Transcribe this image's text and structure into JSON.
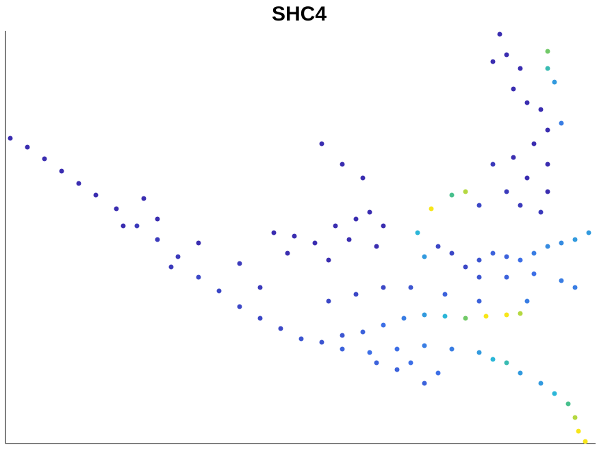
{
  "chart_data": {
    "type": "scatter",
    "title": "SHC4",
    "xlim": [
      8,
      870
    ],
    "ylim": [
      8,
      611
    ],
    "clim": [
      0,
      1
    ],
    "colormap": [
      "#3a2db0",
      "#3d6fe6",
      "#2bb6d8",
      "#4fc27a",
      "#f7e619"
    ],
    "x": [
      15,
      40,
      65,
      90,
      115,
      140,
      170,
      200,
      230,
      260,
      290,
      320,
      350,
      380,
      410,
      440,
      210,
      230,
      290,
      350,
      380,
      250,
      180,
      400,
      430,
      460,
      490,
      520,
      540,
      560,
      510,
      470,
      500,
      530,
      420,
      480,
      550,
      470,
      500,
      530,
      560,
      590,
      620,
      650,
      680,
      710,
      740,
      760,
      500,
      540,
      580,
      620,
      660,
      700,
      720,
      740,
      600,
      640,
      620,
      580,
      550,
      760,
      790,
      810,
      830,
      840,
      845,
      855,
      680,
      700,
      720,
      740,
      760,
      780,
      800,
      820,
      840,
      860,
      700,
      740,
      780,
      820,
      840,
      660,
      640,
      620,
      610,
      730,
      740,
      720,
      760,
      750,
      770,
      790,
      800,
      780,
      800,
      770,
      800,
      790,
      760,
      740,
      700,
      720,
      750,
      800,
      800,
      810,
      820,
      680,
      660,
      630,
      600,
      560,
      520,
      480,
      650,
      700,
      770
    ],
    "values": [
      454,
      441,
      424,
      406,
      388,
      371,
      351,
      326,
      306,
      281,
      251,
      231,
      208,
      191,
      176,
      161,
      366,
      336,
      301,
      271,
      236,
      266,
      326,
      316,
      311,
      301,
      326,
      336,
      346,
      326,
      306,
      446,
      416,
      396,
      286,
      276,
      296,
      156,
      166,
      171,
      181,
      191,
      196,
      194,
      191,
      194,
      196,
      198,
      146,
      141,
      146,
      151,
      146,
      141,
      131,
      126,
      126,
      111,
      96,
      116,
      126,
      111,
      96,
      81,
      66,
      46,
      26,
      11,
      266,
      276,
      286,
      281,
      276,
      286,
      296,
      301,
      306,
      316,
      251,
      251,
      256,
      246,
      236,
      286,
      296,
      281,
      316,
      606,
      576,
      566,
      556,
      526,
      506,
      496,
      466,
      446,
      416,
      396,
      376,
      346,
      356,
      376,
      356,
      416,
      426,
      556,
      581,
      536,
      476,
      376,
      371,
      351,
      236,
      236,
      226,
      216,
      226,
      216,
      216
    ],
    "expression": [
      0,
      0,
      0,
      0,
      0,
      0,
      0,
      0.05,
      0.05,
      0.05,
      0.1,
      0.1,
      0.1,
      0.1,
      0.1,
      0.15,
      0,
      0,
      0,
      0.05,
      0.05,
      0.05,
      0,
      0,
      0,
      0,
      0,
      0,
      0,
      0,
      0,
      0,
      0,
      0,
      0,
      0,
      0,
      0.15,
      0.15,
      0.2,
      0.25,
      0.3,
      0.4,
      0.5,
      0.8,
      1,
      1,
      0.9,
      0.2,
      0.25,
      0.25,
      0.3,
      0.3,
      0.4,
      0.5,
      0.6,
      0.25,
      0.25,
      0.2,
      0.2,
      0.2,
      0.4,
      0.4,
      0.5,
      0.7,
      0.9,
      1,
      1,
      0.1,
      0.15,
      0.2,
      0.2,
      0.25,
      0.3,
      0.35,
      0.35,
      0.4,
      0.4,
      0.15,
      0.2,
      0.25,
      0.3,
      0.3,
      0.1,
      0.1,
      0.4,
      0.5,
      0,
      0,
      0,
      0,
      0,
      0,
      0,
      0,
      0,
      0,
      0,
      0,
      0.05,
      0.05,
      0.05,
      0.1,
      0.05,
      0,
      0.6,
      0.8,
      0.4,
      0.3,
      0.9,
      0.7,
      1,
      0.15,
      0.1,
      0.1,
      0.1,
      0.2,
      0.2,
      0.3
    ]
  }
}
